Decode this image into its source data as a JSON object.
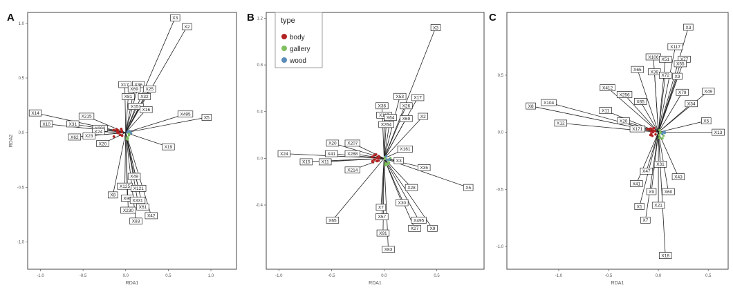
{
  "legend": {
    "title": "type",
    "items": [
      {
        "label": "body",
        "color": "#b22222"
      },
      {
        "label": "gallery",
        "color": "#7fbf5f"
      },
      {
        "label": "wood",
        "color": "#5b8db8"
      }
    ]
  },
  "chart_data": [
    {
      "type": "scatter",
      "panel": "A",
      "xlabel": "RDA1",
      "ylabel": "RDA2",
      "xlim": [
        -1.15,
        1.3
      ],
      "ylim": [
        -1.25,
        1.1
      ],
      "xticks": [
        {
          "v": -1.0,
          "label": "-1.0"
        },
        {
          "v": -0.5,
          "label": "-0.5"
        },
        {
          "v": 0.0,
          "label": "0.0"
        },
        {
          "v": 0.5,
          "label": "0.5"
        },
        {
          "v": 1.0,
          "label": "1.0"
        }
      ],
      "yticks": [
        {
          "v": -1.0,
          "label": "-1.0"
        },
        {
          "v": -0.5,
          "label": "-0.5"
        },
        {
          "v": 0.0,
          "label": "0.0"
        },
        {
          "v": 0.5,
          "label": "0.5"
        },
        {
          "v": 1.0,
          "label": "1.0"
        }
      ],
      "vectors": [
        {
          "label": "X3",
          "x": 0.58,
          "y": 1.05
        },
        {
          "label": "X2",
          "x": 0.72,
          "y": 0.97
        },
        {
          "label": "X14",
          "x": -1.06,
          "y": 0.18
        },
        {
          "label": "X10",
          "x": -0.93,
          "y": 0.08
        },
        {
          "label": "X31",
          "x": -0.62,
          "y": 0.08
        },
        {
          "label": "X215",
          "x": -0.46,
          "y": 0.15
        },
        {
          "label": "X202",
          "x": -0.3,
          "y": 0.04
        },
        {
          "label": "X24",
          "x": -0.32,
          "y": 0.01
        },
        {
          "label": "X62",
          "x": -0.6,
          "y": -0.04
        },
        {
          "label": "X23",
          "x": -0.43,
          "y": -0.03
        },
        {
          "label": "X20",
          "x": -0.27,
          "y": -0.1
        },
        {
          "label": "X17",
          "x": -0.01,
          "y": 0.44
        },
        {
          "label": "X36",
          "x": 0.15,
          "y": 0.44
        },
        {
          "label": "X69",
          "x": 0.1,
          "y": 0.4
        },
        {
          "label": "X25",
          "x": 0.28,
          "y": 0.4
        },
        {
          "label": "X81",
          "x": 0.03,
          "y": 0.33
        },
        {
          "label": "X32",
          "x": 0.22,
          "y": 0.33
        },
        {
          "label": "X151",
          "x": 0.12,
          "y": 0.24
        },
        {
          "label": "X16",
          "x": 0.24,
          "y": 0.21
        },
        {
          "label": "X495",
          "x": 0.7,
          "y": 0.17
        },
        {
          "label": "X5",
          "x": 0.95,
          "y": 0.14
        },
        {
          "label": "X19",
          "x": 0.5,
          "y": -0.13
        },
        {
          "label": "X49",
          "x": 0.1,
          "y": -0.4
        },
        {
          "label": "X125",
          "x": -0.01,
          "y": -0.49
        },
        {
          "label": "X121",
          "x": 0.15,
          "y": -0.51
        },
        {
          "label": "X8",
          "x": -0.15,
          "y": -0.57
        },
        {
          "label": "X90",
          "x": 0.02,
          "y": -0.6
        },
        {
          "label": "X331",
          "x": 0.14,
          "y": -0.62
        },
        {
          "label": "X61",
          "x": 0.2,
          "y": -0.68
        },
        {
          "label": "X230",
          "x": 0.03,
          "y": -0.71
        },
        {
          "label": "X42",
          "x": 0.3,
          "y": -0.76
        },
        {
          "label": "X83",
          "x": 0.12,
          "y": -0.81
        }
      ]
    },
    {
      "type": "scatter",
      "panel": "B",
      "xlabel": "RDA1",
      "ylabel": "",
      "xlim": [
        -1.12,
        0.95
      ],
      "ylim": [
        -0.95,
        1.25
      ],
      "xticks": [
        {
          "v": -1.0,
          "label": "-1.0"
        },
        {
          "v": -0.5,
          "label": "-0.5"
        },
        {
          "v": 0.0,
          "label": "0.0"
        },
        {
          "v": 0.5,
          "label": "0.5"
        }
      ],
      "yticks": [
        {
          "v": -0.4,
          "label": "-0.4"
        },
        {
          "v": 0.0,
          "label": "0.0"
        },
        {
          "v": 0.4,
          "label": "0.4"
        },
        {
          "v": 0.8,
          "label": "0.8"
        },
        {
          "v": 1.2,
          "label": "1.2"
        }
      ],
      "vectors": [
        {
          "label": "X3",
          "x": 0.49,
          "y": 1.12
        },
        {
          "label": "X53",
          "x": 0.15,
          "y": 0.53
        },
        {
          "label": "X17",
          "x": 0.32,
          "y": 0.52
        },
        {
          "label": "X36",
          "x": -0.02,
          "y": 0.45
        },
        {
          "label": "X26",
          "x": 0.21,
          "y": 0.45
        },
        {
          "label": "X117",
          "x": 0.0,
          "y": 0.37
        },
        {
          "label": "X2",
          "x": 0.37,
          "y": 0.36
        },
        {
          "label": "X64",
          "x": 0.06,
          "y": 0.35
        },
        {
          "label": "X69",
          "x": 0.21,
          "y": 0.34
        },
        {
          "label": "X264",
          "x": 0.02,
          "y": 0.29
        },
        {
          "label": "X20",
          "x": -0.49,
          "y": 0.13
        },
        {
          "label": "X207",
          "x": -0.3,
          "y": 0.13
        },
        {
          "label": "X41",
          "x": -0.5,
          "y": 0.04
        },
        {
          "label": "X288",
          "x": -0.3,
          "y": 0.04
        },
        {
          "label": "X24",
          "x": -0.95,
          "y": 0.04
        },
        {
          "label": "X15",
          "x": -0.74,
          "y": -0.03
        },
        {
          "label": "X11",
          "x": -0.56,
          "y": -0.03
        },
        {
          "label": "X214",
          "x": -0.3,
          "y": -0.1
        },
        {
          "label": "X161",
          "x": 0.2,
          "y": 0.08
        },
        {
          "label": "X3",
          "x": 0.14,
          "y": -0.02
        },
        {
          "label": "X35",
          "x": 0.38,
          "y": -0.08
        },
        {
          "label": "X5",
          "x": 0.8,
          "y": -0.25
        },
        {
          "label": "X65",
          "x": -0.49,
          "y": -0.53
        },
        {
          "label": "X28",
          "x": 0.26,
          "y": -0.25
        },
        {
          "label": "X30",
          "x": 0.17,
          "y": -0.38
        },
        {
          "label": "X7",
          "x": -0.03,
          "y": -0.42
        },
        {
          "label": "X57",
          "x": -0.02,
          "y": -0.5
        },
        {
          "label": "X495",
          "x": 0.33,
          "y": -0.53
        },
        {
          "label": "X27",
          "x": 0.29,
          "y": -0.6
        },
        {
          "label": "X9",
          "x": 0.46,
          "y": -0.6
        },
        {
          "label": "X91",
          "x": -0.01,
          "y": -0.64
        },
        {
          "label": "X83",
          "x": 0.04,
          "y": -0.78
        }
      ]
    },
    {
      "type": "scatter",
      "panel": "C",
      "xlabel": "RDA1",
      "ylabel": "",
      "xlim": [
        -1.52,
        0.7
      ],
      "ylim": [
        -1.2,
        1.05
      ],
      "xticks": [
        {
          "v": -1.0,
          "label": "-1.0"
        },
        {
          "v": -0.5,
          "label": "-0.5"
        },
        {
          "v": 0.0,
          "label": "0.0"
        },
        {
          "v": 0.5,
          "label": "0.5"
        }
      ],
      "yticks": [
        {
          "v": -1.0,
          "label": "-1.0"
        },
        {
          "v": -0.5,
          "label": "-0.5"
        },
        {
          "v": 0.0,
          "label": "0.0"
        },
        {
          "v": 0.5,
          "label": "0.5"
        }
      ],
      "vectors": [
        {
          "label": "X3",
          "x": 0.3,
          "y": 0.92
        },
        {
          "label": "X117",
          "x": 0.17,
          "y": 0.75
        },
        {
          "label": "X106",
          "x": -0.05,
          "y": 0.66
        },
        {
          "label": "X51",
          "x": 0.07,
          "y": 0.64
        },
        {
          "label": "X77",
          "x": 0.26,
          "y": 0.64
        },
        {
          "label": "X55",
          "x": 0.22,
          "y": 0.6
        },
        {
          "label": "X65",
          "x": -0.21,
          "y": 0.55
        },
        {
          "label": "X39",
          "x": -0.04,
          "y": 0.53
        },
        {
          "label": "X72",
          "x": 0.07,
          "y": 0.5
        },
        {
          "label": "X9",
          "x": 0.19,
          "y": 0.49
        },
        {
          "label": "X412",
          "x": -0.51,
          "y": 0.39
        },
        {
          "label": "X79",
          "x": 0.24,
          "y": 0.35
        },
        {
          "label": "X49",
          "x": 0.5,
          "y": 0.36
        },
        {
          "label": "X256",
          "x": -0.34,
          "y": 0.33
        },
        {
          "label": "X104",
          "x": -1.1,
          "y": 0.26
        },
        {
          "label": "X8",
          "x": -1.28,
          "y": 0.23
        },
        {
          "label": "X11",
          "x": -0.53,
          "y": 0.19
        },
        {
          "label": "X65",
          "x": -0.18,
          "y": 0.27
        },
        {
          "label": "X34",
          "x": 0.33,
          "y": 0.25
        },
        {
          "label": "X5",
          "x": 0.48,
          "y": 0.1
        },
        {
          "label": "X12",
          "x": -0.98,
          "y": 0.08
        },
        {
          "label": "X20",
          "x": -0.35,
          "y": 0.1
        },
        {
          "label": "X171",
          "x": -0.21,
          "y": 0.03
        },
        {
          "label": "X13",
          "x": 0.6,
          "y": 0.0
        },
        {
          "label": "X31",
          "x": 0.02,
          "y": -0.28
        },
        {
          "label": "X47",
          "x": -0.12,
          "y": -0.34
        },
        {
          "label": "X43",
          "x": 0.2,
          "y": -0.39
        },
        {
          "label": "X41",
          "x": -0.22,
          "y": -0.45
        },
        {
          "label": "X9",
          "x": -0.07,
          "y": -0.52
        },
        {
          "label": "X60",
          "x": 0.1,
          "y": -0.52
        },
        {
          "label": "X1",
          "x": -0.19,
          "y": -0.65
        },
        {
          "label": "X21",
          "x": 0.0,
          "y": -0.64
        },
        {
          "label": "X7",
          "x": -0.13,
          "y": -0.77
        },
        {
          "label": "X18",
          "x": 0.07,
          "y": -1.08
        }
      ]
    }
  ]
}
